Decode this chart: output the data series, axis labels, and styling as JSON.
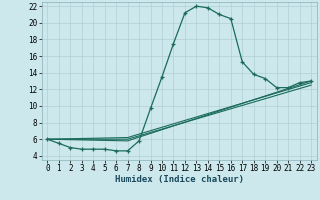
{
  "xlabel": "Humidex (Indice chaleur)",
  "bg_color": "#cce8ec",
  "line_color": "#1a6b5a",
  "grid_color": "#b0cfd4",
  "xlim": [
    -0.5,
    23.5
  ],
  "ylim": [
    3.5,
    22.5
  ],
  "xticks": [
    0,
    1,
    2,
    3,
    4,
    5,
    6,
    7,
    8,
    9,
    10,
    11,
    12,
    13,
    14,
    15,
    16,
    17,
    18,
    19,
    20,
    21,
    22,
    23
  ],
  "yticks": [
    4,
    6,
    8,
    10,
    12,
    14,
    16,
    18,
    20,
    22
  ],
  "main_line": [
    [
      0,
      6
    ],
    [
      1,
      5.5
    ],
    [
      2,
      5
    ],
    [
      3,
      4.8
    ],
    [
      4,
      4.8
    ],
    [
      5,
      4.8
    ],
    [
      6,
      4.6
    ],
    [
      7,
      4.6
    ],
    [
      8,
      5.8
    ],
    [
      9,
      9.7
    ],
    [
      10,
      13.5
    ],
    [
      11,
      17.5
    ],
    [
      12,
      21.2
    ],
    [
      13,
      22
    ],
    [
      14,
      21.8
    ],
    [
      15,
      21.0
    ],
    [
      16,
      20.5
    ],
    [
      17,
      15.3
    ],
    [
      18,
      13.8
    ],
    [
      19,
      13.3
    ],
    [
      20,
      12.2
    ],
    [
      21,
      12.2
    ],
    [
      22,
      12.8
    ],
    [
      23,
      13.0
    ]
  ],
  "extra_lines": [
    [
      [
        0,
        6.0
      ],
      [
        7,
        5.8
      ],
      [
        23,
        13.0
      ]
    ],
    [
      [
        0,
        6.0
      ],
      [
        7,
        6.0
      ],
      [
        23,
        12.5
      ]
    ],
    [
      [
        0,
        6.0
      ],
      [
        7,
        6.2
      ],
      [
        23,
        12.8
      ]
    ]
  ]
}
